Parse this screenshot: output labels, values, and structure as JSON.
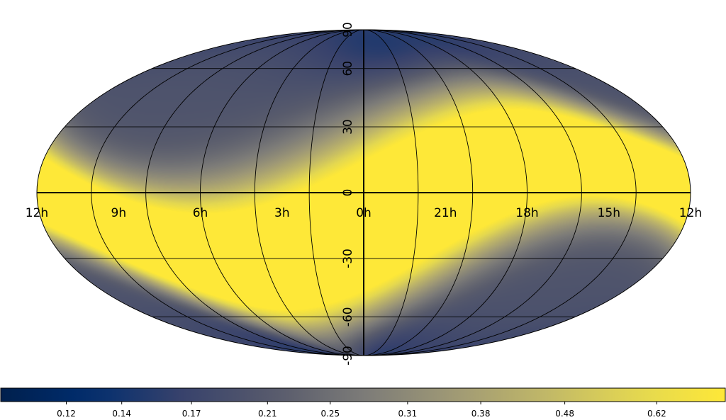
{
  "chart_data": {
    "type": "heatmap",
    "projection": "mollweide",
    "title": "",
    "colormap": "cividis",
    "colors": {
      "low": "#00204d",
      "mid": "#7c7b78",
      "high": "#fee838",
      "grid": "#000000",
      "axis_lines": "#000000"
    },
    "ra_labels": [
      "12h",
      "9h",
      "6h",
      "3h",
      "0h",
      "21h",
      "18h",
      "15h",
      "12h"
    ],
    "ra_hours": [
      12,
      9,
      6,
      3,
      0,
      21,
      18,
      15,
      12
    ],
    "dec_labels": [
      "90",
      "60",
      "30",
      "0",
      "-30",
      "-60",
      "-90"
    ],
    "dec_degrees": [
      90,
      60,
      30,
      0,
      -30,
      -60,
      -90
    ],
    "colorbar": {
      "ticks": [
        0.12,
        0.14,
        0.17,
        0.21,
        0.25,
        0.31,
        0.38,
        0.48,
        0.62
      ],
      "tick_labels": [
        "0.12",
        "0.14",
        "0.17",
        "0.21",
        "0.25",
        "0.31",
        "0.38",
        "0.48",
        "0.62"
      ],
      "range": [
        0.1,
        0.75
      ],
      "scale": "log",
      "orientation": "horizontal",
      "location": "bottom"
    },
    "field_description": {
      "low_regions": [
        [
          45,
          -72
        ],
        [
          -45,
          72
        ]
      ],
      "high_band": "sinuous band along the equator, saturated above 0.62"
    }
  }
}
